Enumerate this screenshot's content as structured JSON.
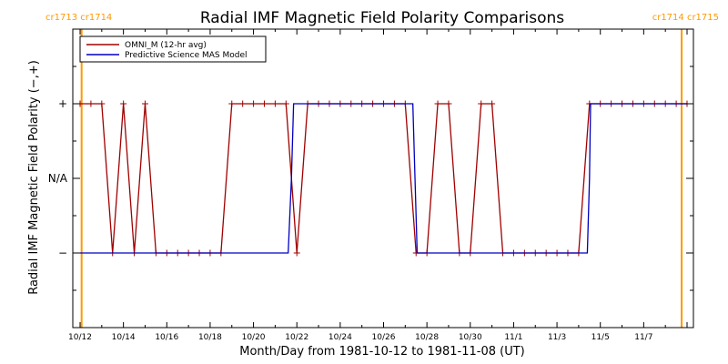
{
  "chart_data": {
    "type": "line",
    "title": "Radial IMF Magnetic Field Polarity Comparisons",
    "xlabel": "Month/Day from 1981-10-12 to 1981-11-08 (UT)",
    "ylabel": "Radial IMF Magnetic Field Polarity (−,+)",
    "x_range_days": [
      0,
      28
    ],
    "y_range": [
      -2,
      2
    ],
    "y_ticks": [
      {
        "value": 1,
        "label": "+"
      },
      {
        "value": 0,
        "label": "N/A"
      },
      {
        "value": -1,
        "label": "−"
      }
    ],
    "x_ticks": [
      {
        "day": 0,
        "label": "10/12"
      },
      {
        "day": 2,
        "label": "10/14"
      },
      {
        "day": 4,
        "label": "10/16"
      },
      {
        "day": 6,
        "label": "10/18"
      },
      {
        "day": 8,
        "label": "10/20"
      },
      {
        "day": 10,
        "label": "10/22"
      },
      {
        "day": 12,
        "label": "10/24"
      },
      {
        "day": 14,
        "label": "10/26"
      },
      {
        "day": 16,
        "label": "10/28"
      },
      {
        "day": 18,
        "label": "10/30"
      },
      {
        "day": 20,
        "label": "11/1"
      },
      {
        "day": 22,
        "label": "11/3"
      },
      {
        "day": 24,
        "label": "11/5"
      },
      {
        "day": 26,
        "label": "11/7"
      }
    ],
    "carrington_markers": [
      {
        "day": 0.07,
        "label": "cr1713 cr1714",
        "anchor": "start"
      },
      {
        "day": 27.75,
        "label": "cr1714 cr1715",
        "anchor": "end"
      }
    ],
    "legend_position": "top-left",
    "grid": false,
    "series": [
      {
        "name": "OMNI_M (12-hr avg)",
        "color": "#a00000",
        "markers": "plus",
        "points": [
          [
            0.0,
            1
          ],
          [
            0.5,
            1
          ],
          [
            1.0,
            1
          ],
          [
            1.5,
            -1
          ],
          [
            2.0,
            1
          ],
          [
            2.5,
            -1
          ],
          [
            3.0,
            1
          ],
          [
            3.5,
            -1
          ],
          [
            4.0,
            -1
          ],
          [
            4.5,
            -1
          ],
          [
            5.0,
            -1
          ],
          [
            5.5,
            -1
          ],
          [
            6.0,
            -1
          ],
          [
            6.5,
            -1
          ],
          [
            7.0,
            1
          ],
          [
            7.5,
            1
          ],
          [
            8.0,
            1
          ],
          [
            8.5,
            1
          ],
          [
            9.0,
            1
          ],
          [
            9.5,
            1
          ],
          [
            10.0,
            -1
          ],
          [
            10.5,
            1
          ],
          [
            11.0,
            1
          ],
          [
            11.5,
            1
          ],
          [
            12.0,
            1
          ],
          [
            12.5,
            1
          ],
          [
            13.0,
            1
          ],
          [
            13.5,
            1
          ],
          [
            14.0,
            1
          ],
          [
            14.5,
            1
          ],
          [
            15.0,
            1
          ],
          [
            15.5,
            -1
          ],
          [
            16.0,
            -1
          ],
          [
            16.5,
            1
          ],
          [
            17.0,
            1
          ],
          [
            17.5,
            -1
          ],
          [
            18.0,
            -1
          ],
          [
            18.5,
            1
          ],
          [
            19.0,
            1
          ],
          [
            19.5,
            -1
          ],
          [
            20.0,
            -1
          ],
          [
            20.5,
            -1
          ],
          [
            21.0,
            -1
          ],
          [
            21.5,
            -1
          ],
          [
            22.0,
            -1
          ],
          [
            22.5,
            -1
          ],
          [
            23.0,
            -1
          ],
          [
            23.5,
            1
          ],
          [
            24.0,
            1
          ],
          [
            24.5,
            1
          ],
          [
            25.0,
            1
          ],
          [
            25.5,
            1
          ],
          [
            26.0,
            1
          ],
          [
            26.5,
            1
          ],
          [
            27.0,
            1
          ],
          [
            27.5,
            1
          ],
          [
            28.0,
            1
          ]
        ]
      },
      {
        "name": "Predictive Science MAS Model",
        "color": "#0000c0",
        "markers": "none",
        "points": [
          [
            0.0,
            -1
          ],
          [
            9.5,
            -1
          ],
          [
            9.6,
            -1
          ],
          [
            9.75,
            0
          ],
          [
            9.85,
            1
          ],
          [
            15.2,
            1
          ],
          [
            15.35,
            1
          ],
          [
            15.45,
            0
          ],
          [
            15.55,
            -1
          ],
          [
            23.3,
            -1
          ],
          [
            23.4,
            -1
          ],
          [
            23.5,
            0
          ],
          [
            23.55,
            1
          ],
          [
            28.0,
            1
          ]
        ]
      }
    ]
  },
  "colors": {
    "cr_marker": "#ff9900",
    "axis": "#000000"
  }
}
